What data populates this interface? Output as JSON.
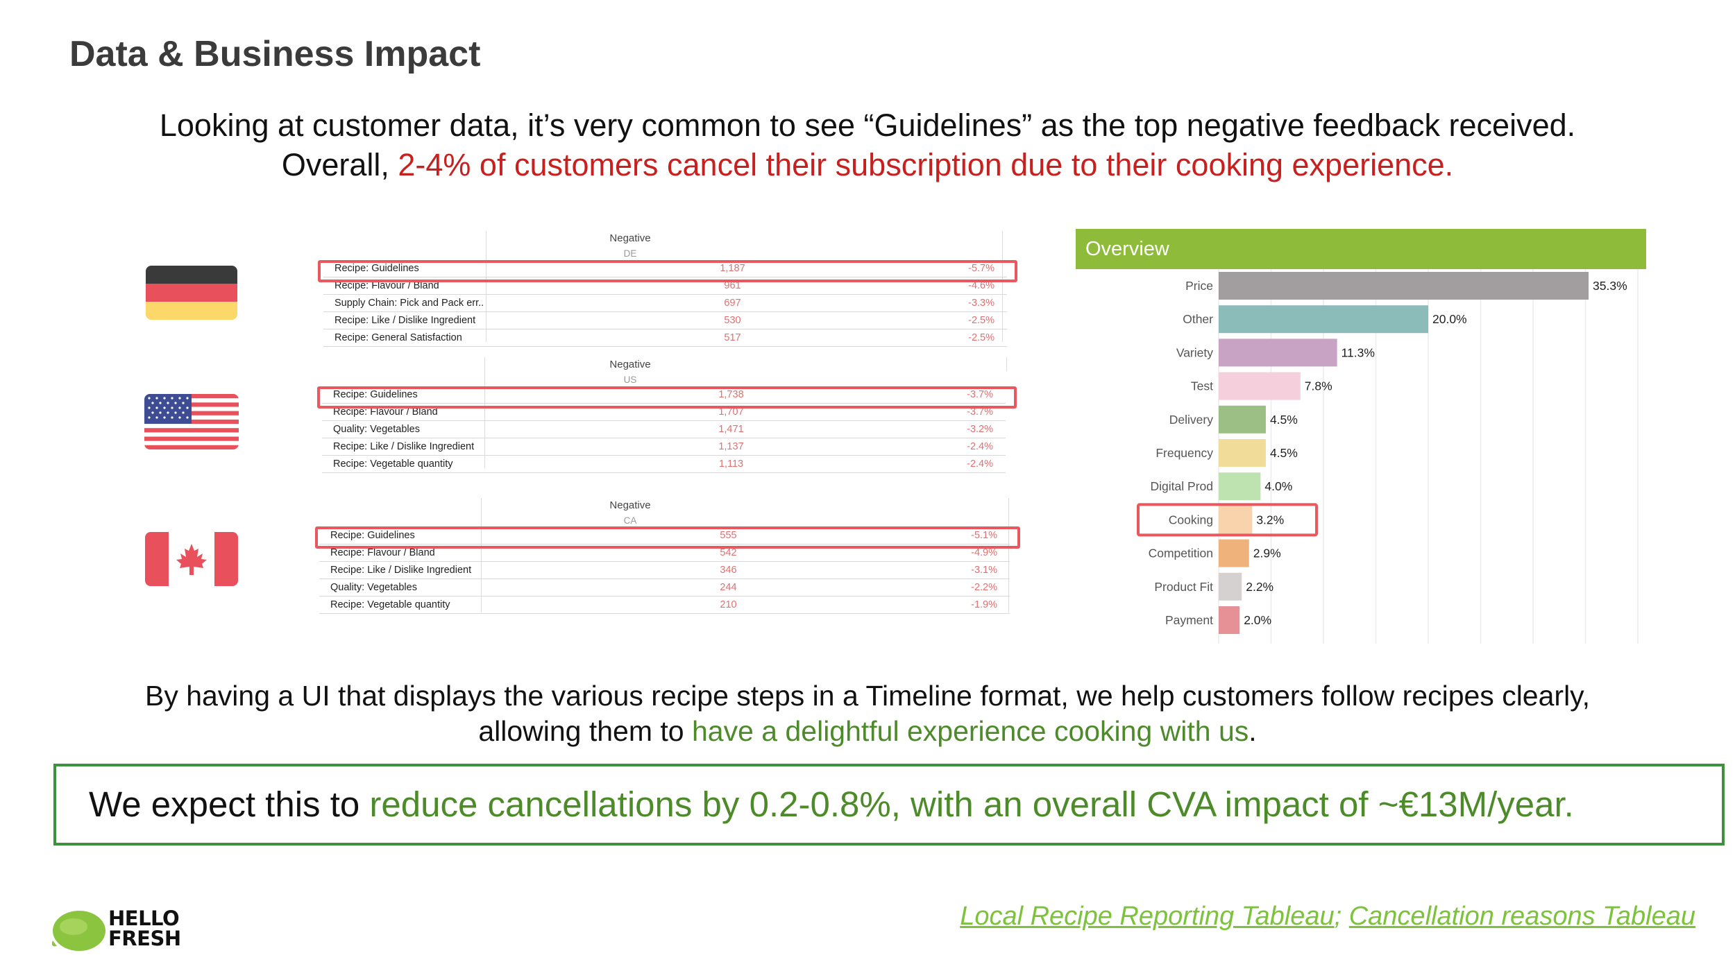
{
  "title": "Data & Business Impact",
  "intro": {
    "line1_plain": "Looking at customer data, it’s very common to see “Guidelines” as the ",
    "line1_bold": "top negative feedback received.",
    "line2_plain": "Overall, ",
    "line2_red": "2-4% of customers cancel their subscription due to their cooking experience."
  },
  "feedback": {
    "header": "Negative",
    "countries": [
      {
        "code": "DE",
        "flag": "germany-flag",
        "rows": [
          {
            "label": "Recipe: Guidelines",
            "count": "1,187",
            "pct": "-5.7%"
          },
          {
            "label": "Recipe: Flavour / Bland",
            "count": "961",
            "pct": "-4.6%"
          },
          {
            "label": "Supply Chain: Pick and Pack err..",
            "count": "697",
            "pct": "-3.3%"
          },
          {
            "label": "Recipe: Like / Dislike Ingredient",
            "count": "530",
            "pct": "-2.5%"
          },
          {
            "label": "Recipe: General Satisfaction",
            "count": "517",
            "pct": "-2.5%"
          }
        ]
      },
      {
        "code": "US",
        "flag": "usa-flag",
        "rows": [
          {
            "label": "Recipe: Guidelines",
            "count": "1,738",
            "pct": "-3.7%"
          },
          {
            "label": "Recipe: Flavour / Bland",
            "count": "1,707",
            "pct": "-3.7%"
          },
          {
            "label": "Quality: Vegetables",
            "count": "1,471",
            "pct": "-3.2%"
          },
          {
            "label": "Recipe: Like / Dislike Ingredient",
            "count": "1,137",
            "pct": "-2.4%"
          },
          {
            "label": "Recipe: Vegetable quantity",
            "count": "1,113",
            "pct": "-2.4%"
          }
        ]
      },
      {
        "code": "CA",
        "flag": "canada-flag",
        "rows": [
          {
            "label": "Recipe: Guidelines",
            "count": "555",
            "pct": "-5.1%"
          },
          {
            "label": "Recipe: Flavour / Bland",
            "count": "542",
            "pct": "-4.9%"
          },
          {
            "label": "Recipe: Like / Dislike Ingredient",
            "count": "346",
            "pct": "-3.1%"
          },
          {
            "label": "Quality: Vegetables",
            "count": "244",
            "pct": "-2.2%"
          },
          {
            "label": "Recipe: Vegetable quantity",
            "count": "210",
            "pct": "-1.9%"
          }
        ]
      }
    ]
  },
  "chart_data": {
    "type": "bar",
    "orientation": "horizontal",
    "title": "Overview",
    "categories": [
      "Price",
      "Other",
      "Variety",
      "Test",
      "Delivery",
      "Frequency",
      "Digital Prod",
      "Cooking",
      "Competition",
      "Product Fit",
      "Payment"
    ],
    "values": [
      35.3,
      20.0,
      11.3,
      7.8,
      4.5,
      4.5,
      4.0,
      3.2,
      2.9,
      2.2,
      2.0
    ],
    "value_labels": [
      "35.3%",
      "20.0%",
      "11.3%",
      "7.8%",
      "4.5%",
      "4.5%",
      "4.0%",
      "3.2%",
      "2.9%",
      "2.2%",
      "2.0%"
    ],
    "colors": [
      "#a29e9f",
      "#8bbcba",
      "#c9a3c4",
      "#f6cfdc",
      "#9bbf85",
      "#f2dc99",
      "#bee3b1",
      "#f9d3ac",
      "#efb27a",
      "#d6d1d1",
      "#e59196"
    ],
    "highlight": "Cooking",
    "xlim": [
      0,
      40
    ],
    "grid": true,
    "header_color": "#8ebc3a"
  },
  "body": {
    "line1": "By having a UI that displays the various recipe steps in a Timeline format, we help customers follow recipes clearly,",
    "line2_plain": "allowing them to ",
    "line2_green": "have a delightful experience cooking with us",
    "line2_end": "."
  },
  "impact": {
    "plain": "We expect this to ",
    "green": "reduce cancellations by 0.2-0.8%, with an overall CVA impact of ~€13M/year."
  },
  "logo": {
    "line1": "HELLO",
    "line2": "FRESH"
  },
  "sources": {
    "link1": "Local Recipe Reporting Tableau",
    "separator": "; ",
    "link2": "Cancellation reasons Tableau"
  },
  "colors": {
    "accent_red": "#c8201f",
    "accent_green": "#4c8a2a",
    "highlight_box": "#e9585e",
    "impact_border": "#3f9140",
    "link_green": "#7cc23a"
  }
}
